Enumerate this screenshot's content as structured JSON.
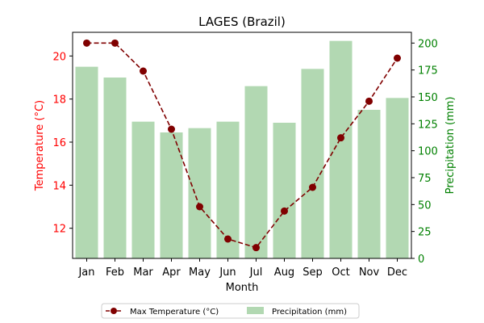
{
  "chart_data": {
    "type": "bar+line",
    "title": "LAGES (Brazil)",
    "xlabel": "Month",
    "ylabel_left": "Temperature (°C)",
    "ylabel_right": "Precipitation (mm)",
    "categories": [
      "Jan",
      "Feb",
      "Mar",
      "Apr",
      "May",
      "Jun",
      "Jul",
      "Aug",
      "Sep",
      "Oct",
      "Nov",
      "Dec"
    ],
    "left_axis": {
      "ylim": [
        10.6,
        21.1
      ],
      "ticks": [
        12,
        14,
        16,
        18,
        20
      ],
      "color": "#ff0000"
    },
    "right_axis": {
      "ylim": [
        0,
        210
      ],
      "ticks": [
        0,
        25,
        50,
        75,
        100,
        125,
        150,
        175,
        200
      ],
      "color": "#008000"
    },
    "series": [
      {
        "name": "Max Temperature (°C)",
        "kind": "line",
        "axis": "left",
        "color": "#800000",
        "line_style": "dashed",
        "marker": "circle",
        "values": [
          20.6,
          20.6,
          19.3,
          16.6,
          13.0,
          11.5,
          11.1,
          12.8,
          13.9,
          16.2,
          17.9,
          19.9
        ]
      },
      {
        "name": "Precipitation (mm)",
        "kind": "bar",
        "axis": "right",
        "color": "#b2d8b2",
        "values": [
          178,
          168,
          127,
          117,
          121,
          127,
          160,
          126,
          176,
          202,
          138,
          149
        ]
      }
    ],
    "legend": {
      "placement": "bottom-center"
    },
    "grid": false
  }
}
